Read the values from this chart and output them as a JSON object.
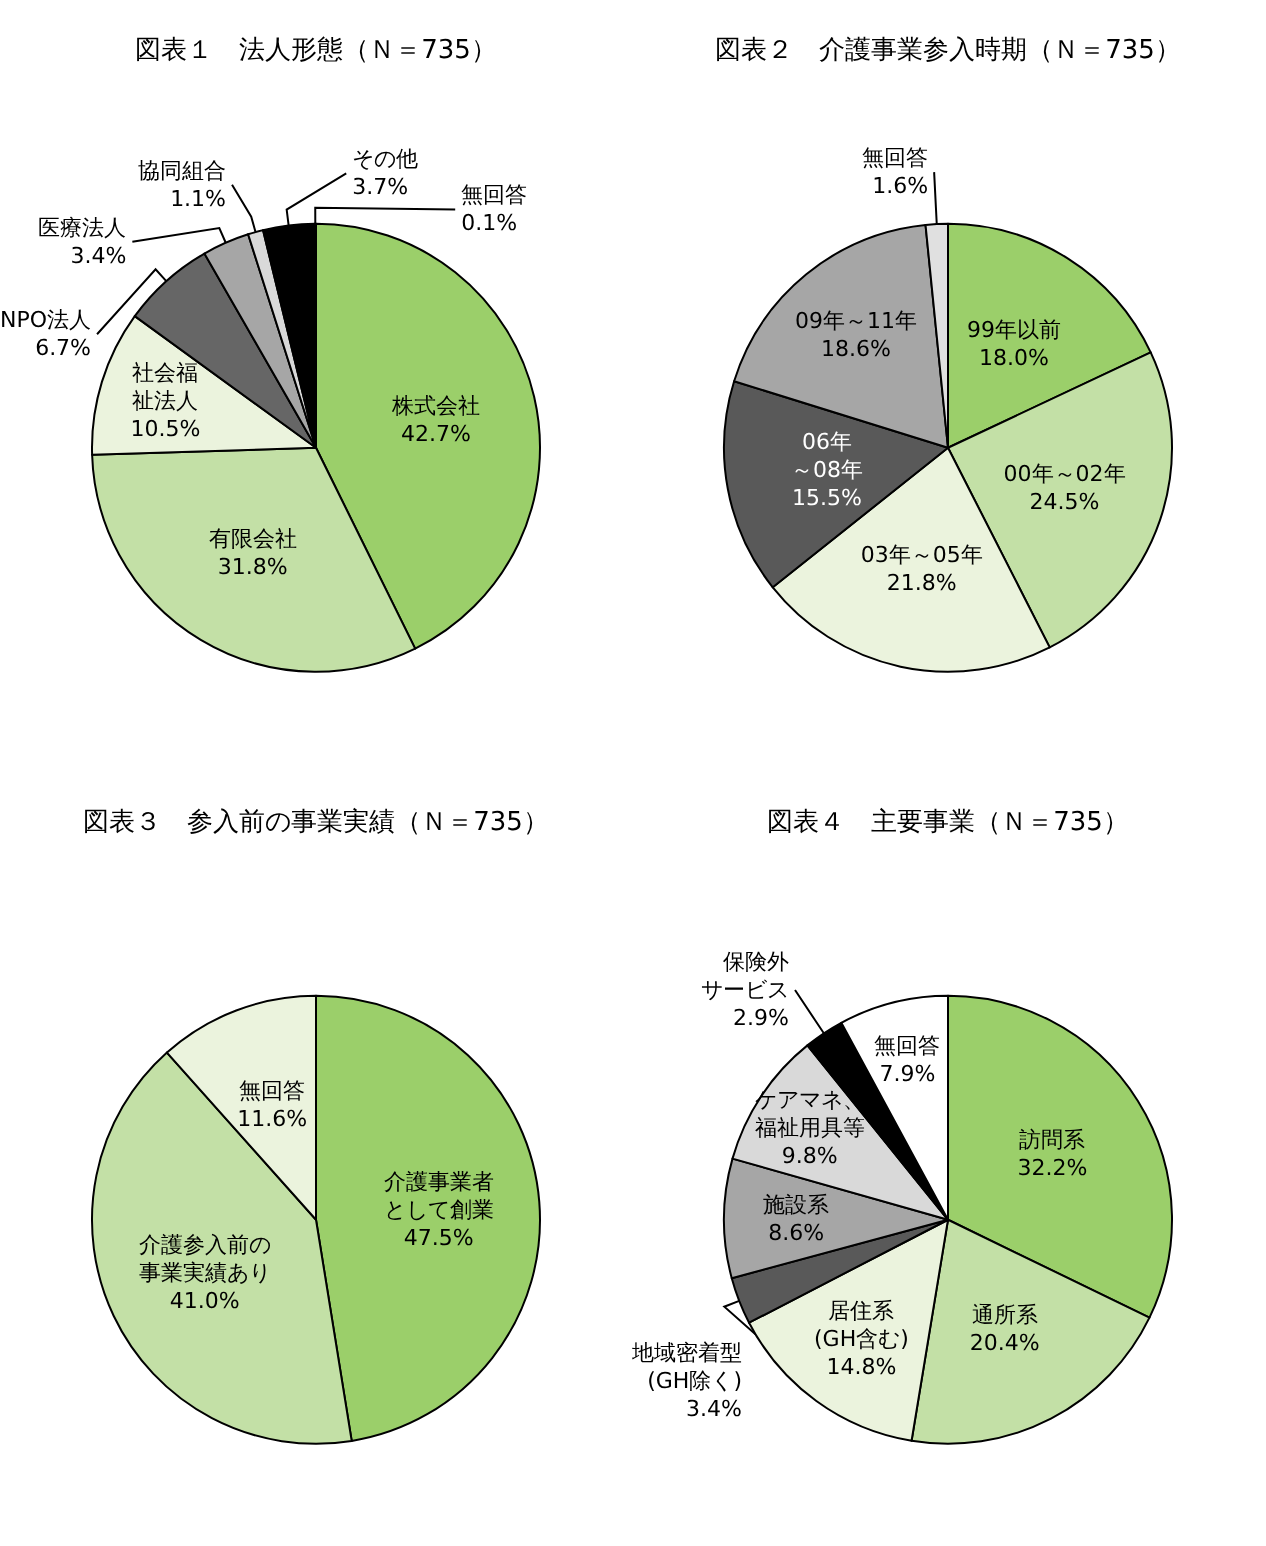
{
  "chart_data": [
    {
      "type": "pie",
      "title": "図表１　法人形態（Ｎ＝735）",
      "categories": [
        "株式会社",
        "有限会社",
        "社会福祉法人",
        "NPO法人",
        "医療法人",
        "協同組合",
        "その他",
        "無回答"
      ],
      "values": [
        42.7,
        31.8,
        10.5,
        6.7,
        3.4,
        1.1,
        3.7,
        0.1
      ],
      "value_labels": [
        "42.7%",
        "31.8%",
        "10.5%",
        "6.7%",
        "3.4%",
        "1.1%",
        "3.7%",
        "0.1%"
      ],
      "colors": [
        "#9bcf6a",
        "#c3e0a6",
        "#ebf3dd",
        "#666666",
        "#a6a6a6",
        "#d9d9d9",
        "#000000",
        "#ffffff"
      ]
    },
    {
      "type": "pie",
      "title": "図表２　介護事業参入時期（Ｎ＝735）",
      "categories": [
        "99年以前",
        "00年～02年",
        "03年～05年",
        "06年～08年",
        "09年～11年",
        "無回答"
      ],
      "values": [
        18.0,
        24.5,
        21.8,
        15.5,
        18.6,
        1.6
      ],
      "value_labels": [
        "18.0%",
        "24.5%",
        "21.8%",
        "15.5%",
        "18.6%",
        "1.6%"
      ],
      "colors": [
        "#9bcf6a",
        "#c3e0a6",
        "#ebf3dd",
        "#595959",
        "#a6a6a6",
        "#e0e0e0"
      ]
    },
    {
      "type": "pie",
      "title": "図表３　参入前の事業実績（Ｎ＝735）",
      "categories": [
        "介護事業者として創業",
        "介護参入前の事業実績あり",
        "無回答"
      ],
      "values": [
        47.5,
        41.0,
        11.6
      ],
      "value_labels": [
        "47.5%",
        "41.0%",
        "11.6%"
      ],
      "colors": [
        "#9bcf6a",
        "#c3e0a6",
        "#ebf3dd"
      ]
    },
    {
      "type": "pie",
      "title": "図表４　主要事業（Ｎ＝735）",
      "categories": [
        "訪問系",
        "通所系",
        "居住系(GH含む)",
        "地域密着型(GH除く)",
        "施設系",
        "ケアマネ、福祉用具等",
        "保険外サービス",
        "無回答"
      ],
      "values": [
        32.2,
        20.4,
        14.8,
        3.4,
        8.6,
        9.8,
        2.9,
        7.9
      ],
      "value_labels": [
        "32.2%",
        "20.4%",
        "14.8%",
        "3.4%",
        "8.6%",
        "9.8%",
        "2.9%",
        "7.9%"
      ],
      "colors": [
        "#9bcf6a",
        "#c3e0a6",
        "#ebf3dd",
        "#595959",
        "#a6a6a6",
        "#d9d9d9",
        "#000000",
        "#ffffff"
      ]
    }
  ]
}
